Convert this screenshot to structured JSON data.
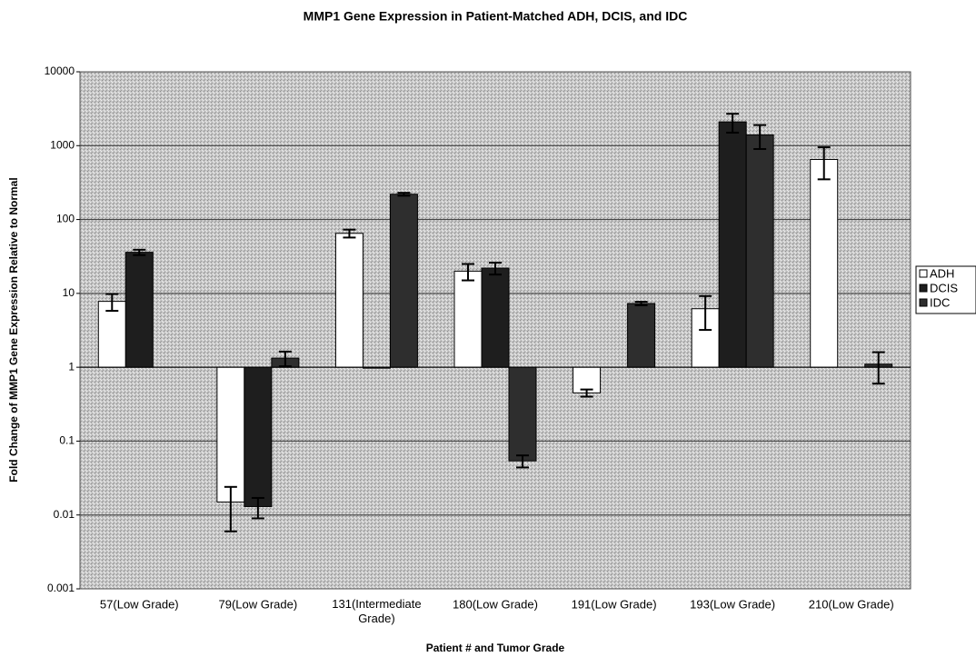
{
  "chart_data": {
    "type": "bar",
    "title": "MMP1 Gene Expression in Patient-Matched ADH, DCIS, and IDC",
    "xlabel": "Patient # and Tumor Grade",
    "ylabel": "Fold Change of MMP1 Gene Expression Relative to Normal",
    "categories": [
      "57(Low Grade)",
      "79(Low Grade)",
      "131(Intermediate Grade)",
      "180(Low Grade)",
      "191(Low Grade)",
      "193(Low Grade)",
      "210(Low Grade)"
    ],
    "series": [
      {
        "name": "ADH",
        "color": "#ffffff",
        "values": [
          7.8,
          0.015,
          65,
          20,
          0.45,
          6.2,
          650
        ],
        "errors": [
          2,
          0.009,
          8,
          5,
          0.05,
          3,
          300
        ]
      },
      {
        "name": "DCIS",
        "color": "#1e1e1e",
        "values": [
          36,
          0.013,
          1,
          22,
          null,
          2100,
          null
        ],
        "errors": [
          3,
          0.004,
          null,
          4,
          null,
          600,
          null
        ]
      },
      {
        "name": "IDC",
        "color": "#2e2e2e",
        "values": [
          null,
          1.33,
          220,
          0.054,
          7.3,
          1400,
          1.1
        ],
        "errors": [
          null,
          0.3,
          10,
          0.01,
          0.4,
          500,
          0.5
        ]
      }
    ],
    "log_scale": true,
    "grid": true,
    "legend": "right",
    "ylim": [
      0.001,
      10000
    ],
    "yticks": [
      0.001,
      0.01,
      0.1,
      1,
      10,
      100,
      1000,
      10000
    ]
  }
}
